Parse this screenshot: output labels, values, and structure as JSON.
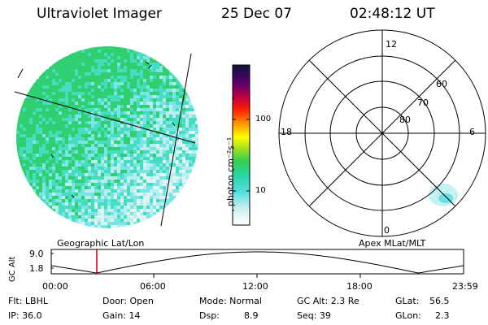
{
  "header": {
    "instrument": "Ultraviolet Imager",
    "date": "25 Dec 07",
    "time": "02:48:12 UT"
  },
  "colorbar": {
    "unit_label": "photon cm⁻²s⁻¹",
    "ticks": [
      "100",
      "10"
    ]
  },
  "polar": {
    "mlt_labels": [
      "12",
      "18",
      "6",
      "0"
    ],
    "lat_labels": [
      "60",
      "70",
      "80"
    ]
  },
  "altitude_plot": {
    "ylabel": "GC Alt",
    "ytick_top": "9.0",
    "ytick_bottom": "1.8",
    "left_title": "Geographic Lat/Lon",
    "right_title": "Apex MLat/MLT",
    "xticks": [
      "00:00",
      "06:00",
      "12:00",
      "18:00",
      "23:59"
    ],
    "marker_color": "#cc0000"
  },
  "info": {
    "flt": "Flt: LBHL",
    "ip": "IP: 36.0",
    "door": "Door: Open",
    "gain": "Gain: 14",
    "mode": "Mode: Normal",
    "dsp_label": "Dsp:",
    "dsp_value": "8.9",
    "gcalt": "GC Alt: 2.3 Re",
    "seq": "Seq: 39",
    "glat_label": "GLat:",
    "glat_value": "56.5",
    "glon_label": "GLon:",
    "glon_value": "2.3"
  }
}
